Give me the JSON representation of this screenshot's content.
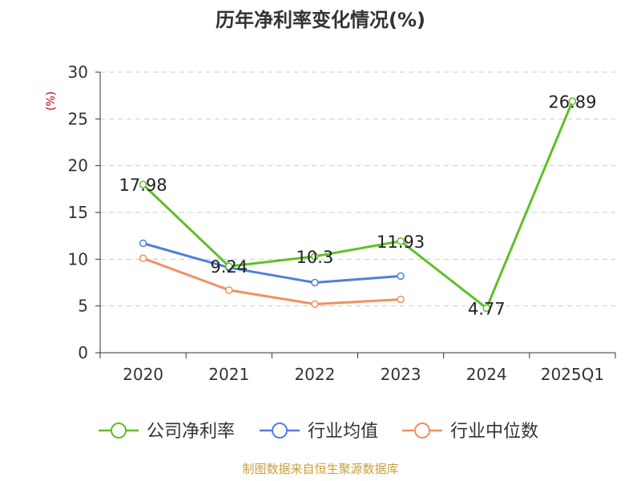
{
  "chart_data": {
    "type": "line",
    "title": "历年净利率变化情况(%)",
    "ylabel": "(%)",
    "xlabel": "",
    "categories": [
      "2020",
      "2021",
      "2022",
      "2023",
      "2024",
      "2025Q1"
    ],
    "ylim": [
      0,
      30
    ],
    "yticks": [
      "0",
      "5",
      "10",
      "15",
      "20",
      "25",
      "30"
    ],
    "grid": true,
    "legend_position": "bottom",
    "series": [
      {
        "name": "公司净利率",
        "color": "#5dc026",
        "values": [
          17.98,
          9.24,
          10.3,
          11.93,
          4.77,
          26.89
        ],
        "labels": [
          "17.98",
          "9.24",
          "10.3",
          "11.93",
          "4.77",
          "26.89"
        ]
      },
      {
        "name": "行业均值",
        "color": "#4f81d9",
        "values": [
          11.7,
          9.1,
          7.5,
          8.2,
          null,
          null
        ]
      },
      {
        "name": "行业中位数",
        "color": "#f39061",
        "values": [
          10.1,
          6.7,
          5.2,
          5.7,
          null,
          null
        ]
      }
    ],
    "ylabel_color": "#cc0000"
  },
  "footer": {
    "source": "制图数据来自恒生聚源数据库",
    "source_color": "#c8a03c"
  }
}
